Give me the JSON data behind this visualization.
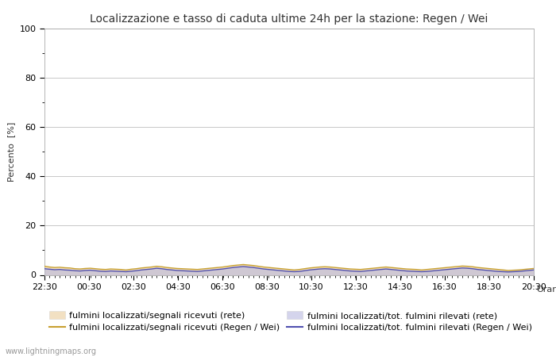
{
  "title": "Localizzazione e tasso di caduta ultime 24h per la stazione: Regen / Wei",
  "ylabel": "Percento  [%]",
  "xlabel": "Orario",
  "ylim": [
    0,
    100
  ],
  "yticks": [
    0,
    20,
    40,
    60,
    80,
    100
  ],
  "yticks_minor": [
    10,
    30,
    50,
    70,
    90
  ],
  "x_labels": [
    "22:30",
    "00:30",
    "02:30",
    "04:30",
    "06:30",
    "08:30",
    "10:30",
    "12:30",
    "14:30",
    "16:30",
    "18:30",
    "20:30"
  ],
  "n_points": 97,
  "background_color": "#ffffff",
  "plot_bg_color": "#ffffff",
  "grid_color": "#c8c8c8",
  "fill_rete_color": "#e8c890",
  "fill_rete_alpha": 0.55,
  "fill_regen_color": "#b8b8e0",
  "fill_regen_alpha": 0.6,
  "line_rete_color": "#c8a030",
  "line_regen_color": "#5050b0",
  "line_width": 1.0,
  "title_fontsize": 10,
  "label_fontsize": 8,
  "tick_fontsize": 8,
  "legend_fontsize": 8,
  "watermark": "www.lightningmaps.org",
  "rete_signal_values": [
    3.5,
    3.2,
    3.0,
    3.1,
    2.9,
    2.8,
    2.5,
    2.4,
    2.6,
    2.7,
    2.5,
    2.3,
    2.2,
    2.4,
    2.3,
    2.2,
    2.0,
    2.3,
    2.5,
    2.8,
    3.0,
    3.2,
    3.5,
    3.3,
    3.0,
    2.8,
    2.6,
    2.5,
    2.4,
    2.3,
    2.2,
    2.4,
    2.6,
    2.8,
    3.0,
    3.2,
    3.5,
    3.8,
    4.0,
    4.2,
    4.0,
    3.8,
    3.5,
    3.2,
    3.0,
    2.8,
    2.6,
    2.4,
    2.2,
    2.0,
    2.2,
    2.5,
    2.8,
    3.0,
    3.2,
    3.3,
    3.2,
    3.0,
    2.8,
    2.6,
    2.4,
    2.3,
    2.2,
    2.4,
    2.6,
    2.8,
    3.0,
    3.2,
    3.0,
    2.8,
    2.6,
    2.4,
    2.3,
    2.2,
    2.0,
    2.2,
    2.4,
    2.6,
    2.8,
    3.0,
    3.2,
    3.4,
    3.6,
    3.5,
    3.3,
    3.0,
    2.8,
    2.6,
    2.4,
    2.2,
    2.0,
    1.8,
    1.9,
    2.0,
    2.2,
    2.4,
    2.6
  ],
  "regen_signal_values": [
    2.5,
    2.3,
    2.1,
    2.2,
    2.0,
    1.9,
    1.7,
    1.6,
    1.8,
    1.9,
    1.7,
    1.5,
    1.4,
    1.6,
    1.5,
    1.4,
    1.3,
    1.5,
    1.7,
    2.0,
    2.2,
    2.4,
    2.7,
    2.5,
    2.2,
    2.0,
    1.8,
    1.7,
    1.6,
    1.5,
    1.4,
    1.6,
    1.8,
    2.0,
    2.2,
    2.4,
    2.7,
    3.0,
    3.2,
    3.4,
    3.2,
    3.0,
    2.7,
    2.4,
    2.2,
    2.0,
    1.8,
    1.6,
    1.4,
    1.3,
    1.4,
    1.7,
    2.0,
    2.2,
    2.4,
    2.5,
    2.4,
    2.2,
    2.0,
    1.8,
    1.6,
    1.5,
    1.4,
    1.6,
    1.8,
    2.0,
    2.2,
    2.4,
    2.2,
    2.0,
    1.8,
    1.6,
    1.5,
    1.4,
    1.3,
    1.4,
    1.6,
    1.8,
    2.0,
    2.2,
    2.4,
    2.6,
    2.8,
    2.7,
    2.5,
    2.2,
    2.0,
    1.8,
    1.6,
    1.4,
    1.3,
    1.2,
    1.3,
    1.4,
    1.6,
    1.8,
    2.0
  ]
}
